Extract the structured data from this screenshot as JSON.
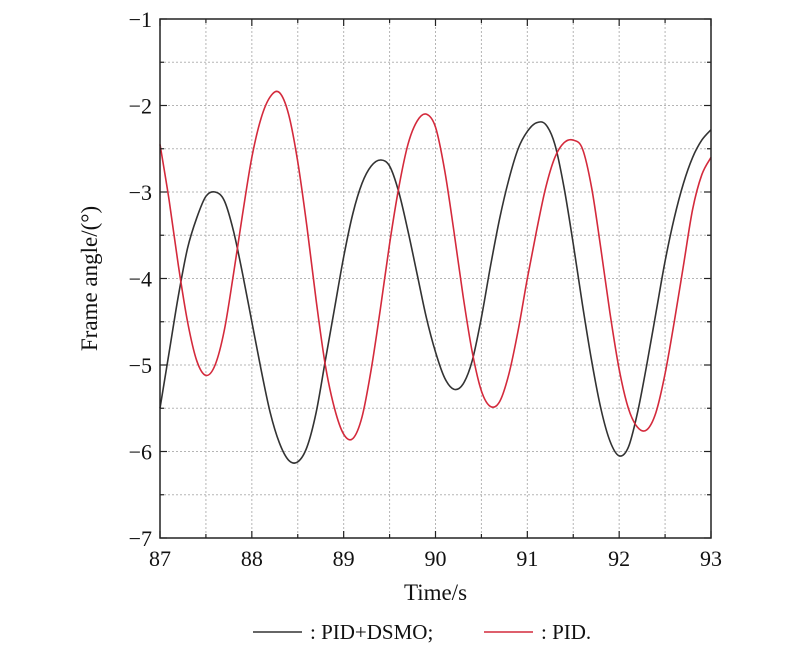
{
  "chart_data": {
    "type": "line",
    "xlabel": "Time/s",
    "ylabel": "Frame angle/(°)",
    "xlim": [
      87,
      93
    ],
    "ylim": [
      -7,
      -1
    ],
    "xticks": [
      "87",
      "88",
      "89",
      "90",
      "91",
      "92",
      "93"
    ],
    "yticks": [
      "−1",
      "−2",
      "−3",
      "−4",
      "−5",
      "−6",
      "−7"
    ],
    "grid": true,
    "legend_position": "bottom",
    "series": [
      {
        "name": ": PID+DSMO;",
        "color": "#333333",
        "points": [
          [
            87.0,
            -5.5
          ],
          [
            87.1,
            -4.85
          ],
          [
            87.2,
            -4.2
          ],
          [
            87.3,
            -3.65
          ],
          [
            87.4,
            -3.3
          ],
          [
            87.5,
            -3.05
          ],
          [
            87.6,
            -3.0
          ],
          [
            87.7,
            -3.1
          ],
          [
            87.8,
            -3.45
          ],
          [
            87.9,
            -3.95
          ],
          [
            88.0,
            -4.5
          ],
          [
            88.1,
            -5.05
          ],
          [
            88.2,
            -5.55
          ],
          [
            88.3,
            -5.9
          ],
          [
            88.4,
            -6.1
          ],
          [
            88.5,
            -6.12
          ],
          [
            88.6,
            -5.95
          ],
          [
            88.7,
            -5.55
          ],
          [
            88.8,
            -4.95
          ],
          [
            88.9,
            -4.35
          ],
          [
            89.0,
            -3.75
          ],
          [
            89.1,
            -3.25
          ],
          [
            89.2,
            -2.9
          ],
          [
            89.3,
            -2.7
          ],
          [
            89.4,
            -2.63
          ],
          [
            89.5,
            -2.7
          ],
          [
            89.6,
            -3.0
          ],
          [
            89.7,
            -3.45
          ],
          [
            89.8,
            -3.95
          ],
          [
            89.9,
            -4.45
          ],
          [
            90.0,
            -4.85
          ],
          [
            90.1,
            -5.15
          ],
          [
            90.2,
            -5.28
          ],
          [
            90.3,
            -5.22
          ],
          [
            90.4,
            -4.95
          ],
          [
            90.5,
            -4.45
          ],
          [
            90.6,
            -3.85
          ],
          [
            90.7,
            -3.3
          ],
          [
            90.8,
            -2.85
          ],
          [
            90.9,
            -2.5
          ],
          [
            91.0,
            -2.3
          ],
          [
            91.1,
            -2.2
          ],
          [
            91.2,
            -2.22
          ],
          [
            91.3,
            -2.45
          ],
          [
            91.4,
            -2.95
          ],
          [
            91.5,
            -3.6
          ],
          [
            91.6,
            -4.3
          ],
          [
            91.7,
            -4.95
          ],
          [
            91.8,
            -5.5
          ],
          [
            91.9,
            -5.88
          ],
          [
            92.0,
            -6.05
          ],
          [
            92.1,
            -5.95
          ],
          [
            92.2,
            -5.55
          ],
          [
            92.3,
            -5.0
          ],
          [
            92.4,
            -4.4
          ],
          [
            92.5,
            -3.8
          ],
          [
            92.6,
            -3.3
          ],
          [
            92.7,
            -2.9
          ],
          [
            92.8,
            -2.6
          ],
          [
            92.9,
            -2.4
          ],
          [
            93.0,
            -2.28
          ]
        ]
      },
      {
        "name": ": PID.",
        "color": "#d42a3c",
        "points": [
          [
            87.0,
            -2.45
          ],
          [
            87.1,
            -3.1
          ],
          [
            87.2,
            -3.85
          ],
          [
            87.3,
            -4.5
          ],
          [
            87.4,
            -4.95
          ],
          [
            87.5,
            -5.12
          ],
          [
            87.6,
            -5.0
          ],
          [
            87.7,
            -4.6
          ],
          [
            87.8,
            -3.95
          ],
          [
            87.9,
            -3.25
          ],
          [
            88.0,
            -2.6
          ],
          [
            88.1,
            -2.15
          ],
          [
            88.2,
            -1.9
          ],
          [
            88.3,
            -1.85
          ],
          [
            88.4,
            -2.1
          ],
          [
            88.5,
            -2.65
          ],
          [
            88.6,
            -3.4
          ],
          [
            88.7,
            -4.25
          ],
          [
            88.8,
            -5.0
          ],
          [
            88.9,
            -5.5
          ],
          [
            89.0,
            -5.8
          ],
          [
            89.1,
            -5.85
          ],
          [
            89.2,
            -5.6
          ],
          [
            89.3,
            -5.05
          ],
          [
            89.4,
            -4.35
          ],
          [
            89.5,
            -3.6
          ],
          [
            89.6,
            -2.95
          ],
          [
            89.7,
            -2.45
          ],
          [
            89.8,
            -2.18
          ],
          [
            89.9,
            -2.1
          ],
          [
            90.0,
            -2.25
          ],
          [
            90.1,
            -2.75
          ],
          [
            90.2,
            -3.45
          ],
          [
            90.3,
            -4.2
          ],
          [
            90.4,
            -4.85
          ],
          [
            90.5,
            -5.3
          ],
          [
            90.6,
            -5.48
          ],
          [
            90.7,
            -5.42
          ],
          [
            90.8,
            -5.1
          ],
          [
            90.9,
            -4.6
          ],
          [
            91.0,
            -4.0
          ],
          [
            91.1,
            -3.45
          ],
          [
            91.2,
            -2.95
          ],
          [
            91.3,
            -2.6
          ],
          [
            91.4,
            -2.43
          ],
          [
            91.5,
            -2.4
          ],
          [
            91.6,
            -2.5
          ],
          [
            91.7,
            -2.95
          ],
          [
            91.8,
            -3.65
          ],
          [
            91.9,
            -4.4
          ],
          [
            92.0,
            -5.05
          ],
          [
            92.1,
            -5.5
          ],
          [
            92.2,
            -5.72
          ],
          [
            92.3,
            -5.75
          ],
          [
            92.4,
            -5.55
          ],
          [
            92.5,
            -5.1
          ],
          [
            92.6,
            -4.5
          ],
          [
            92.7,
            -3.85
          ],
          [
            92.8,
            -3.2
          ],
          [
            92.9,
            -2.8
          ],
          [
            93.0,
            -2.6
          ]
        ]
      }
    ]
  }
}
